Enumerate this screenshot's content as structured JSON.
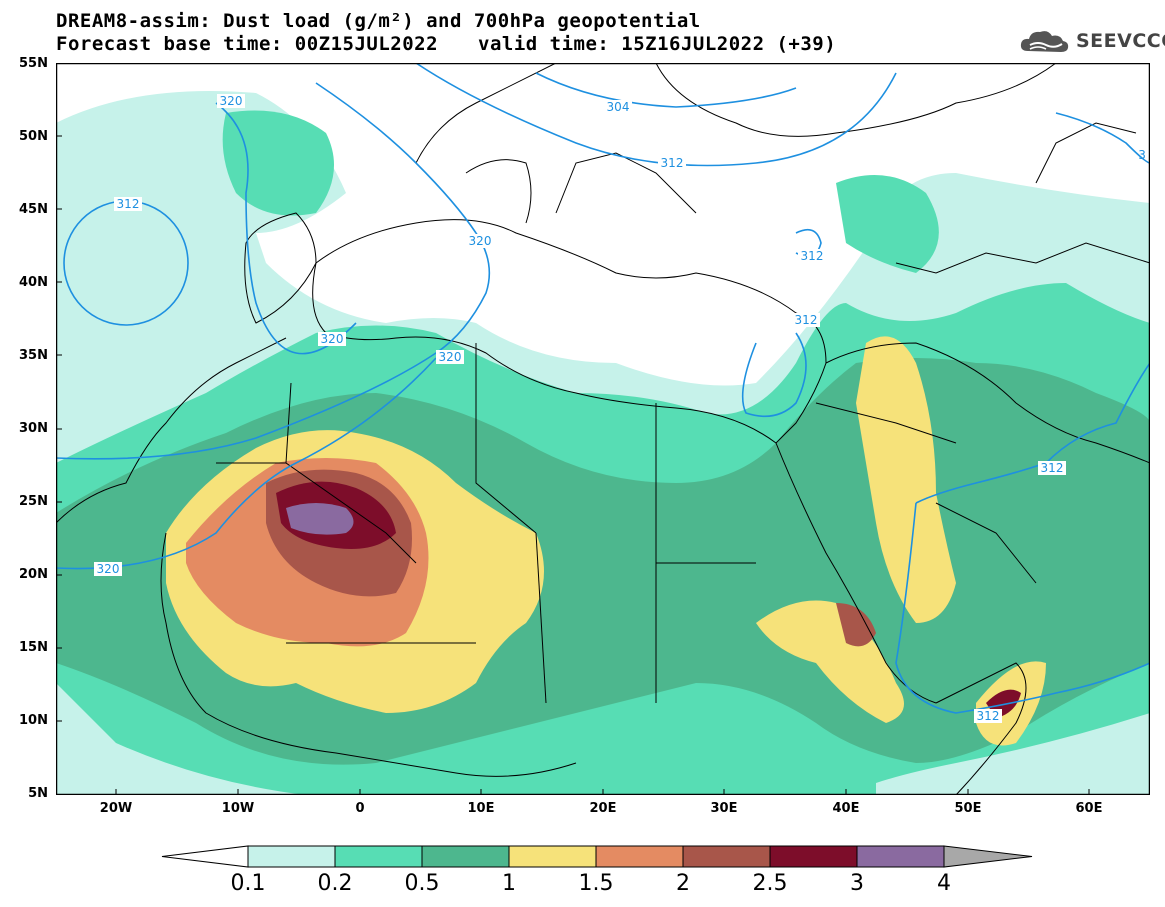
{
  "header": {
    "title": "DREAM8-assim: Dust load (g/m²) and 700hPa geopotential",
    "base_time": "Forecast base time: 00Z15JUL2022",
    "valid_time": "valid time: 15Z16JUL2022 (+39)"
  },
  "logo": {
    "icon": "cloud-logo-icon",
    "text": "SEEVCCC"
  },
  "axes": {
    "lat_labels": [
      "55N",
      "50N",
      "45N",
      "40N",
      "35N",
      "30N",
      "25N",
      "20N",
      "15N",
      "10N",
      "5N"
    ],
    "lon_labels": [
      "20W",
      "10W",
      "0",
      "10E",
      "20E",
      "30E",
      "40E",
      "50E",
      "60E"
    ]
  },
  "contour_labels": [
    "320",
    "312",
    "304",
    "312",
    "3",
    "320",
    "320",
    "320",
    "320",
    "312",
    "312",
    "312",
    "312",
    "320"
  ],
  "colorbar": {
    "labels": [
      "0.1",
      "0.2",
      "0.5",
      "1",
      "1.5",
      "2",
      "2.5",
      "3",
      "4"
    ],
    "colors": [
      "#c6f2ea",
      "#57ddb4",
      "#4db78e",
      "#f6e27a",
      "#e48b62",
      "#a8564a",
      "#7d0d2a",
      "#8a6aa0",
      "#a8a8a8"
    ]
  },
  "colors": {
    "contour": "#1e90e0",
    "border": "#000000"
  }
}
